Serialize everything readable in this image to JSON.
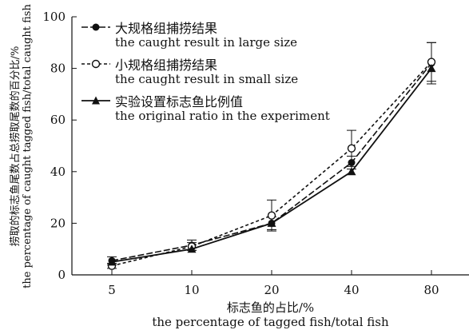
{
  "chart_data": {
    "type": "line",
    "categories": [
      "5",
      "10",
      "20",
      "40",
      "80"
    ],
    "ylim": [
      0,
      100
    ],
    "yticks": [
      0,
      20,
      40,
      60,
      80,
      100
    ],
    "xlabel_cn": "标志鱼的占比/%",
    "xlabel_en": "the percentage of tagged fish/total fish",
    "ylabel_cn": "捞取的标志鱼尾数占总捞取尾数的百分比/%",
    "ylabel_en": "the percentage of caught tagged fish/total caught fish",
    "series": [
      {
        "name_cn": "大规格组捕捞结果",
        "name_en": "the caught result in large size",
        "marker": "filled-circle",
        "dash": "long-dash",
        "values": [
          5.5,
          11.5,
          20,
          43.5,
          82
        ],
        "error": [
          1.5,
          2.0,
          2.5,
          2.5,
          8
        ]
      },
      {
        "name_cn": "小规格组捕捞结果",
        "name_en": "the caught result in small size",
        "marker": "open-circle",
        "dash": "short-dash",
        "values": [
          3.5,
          11,
          23,
          49,
          82.5
        ],
        "error": [
          1.0,
          1.5,
          6.0,
          7.0,
          7.5
        ]
      },
      {
        "name_cn": "实验设置标志鱼比例值",
        "name_en": "the original ratio in the experiment",
        "marker": "filled-triangle",
        "dash": "solid",
        "values": [
          5,
          10,
          20,
          40,
          80
        ],
        "error": [
          0,
          0,
          0,
          0,
          0
        ]
      }
    ]
  }
}
